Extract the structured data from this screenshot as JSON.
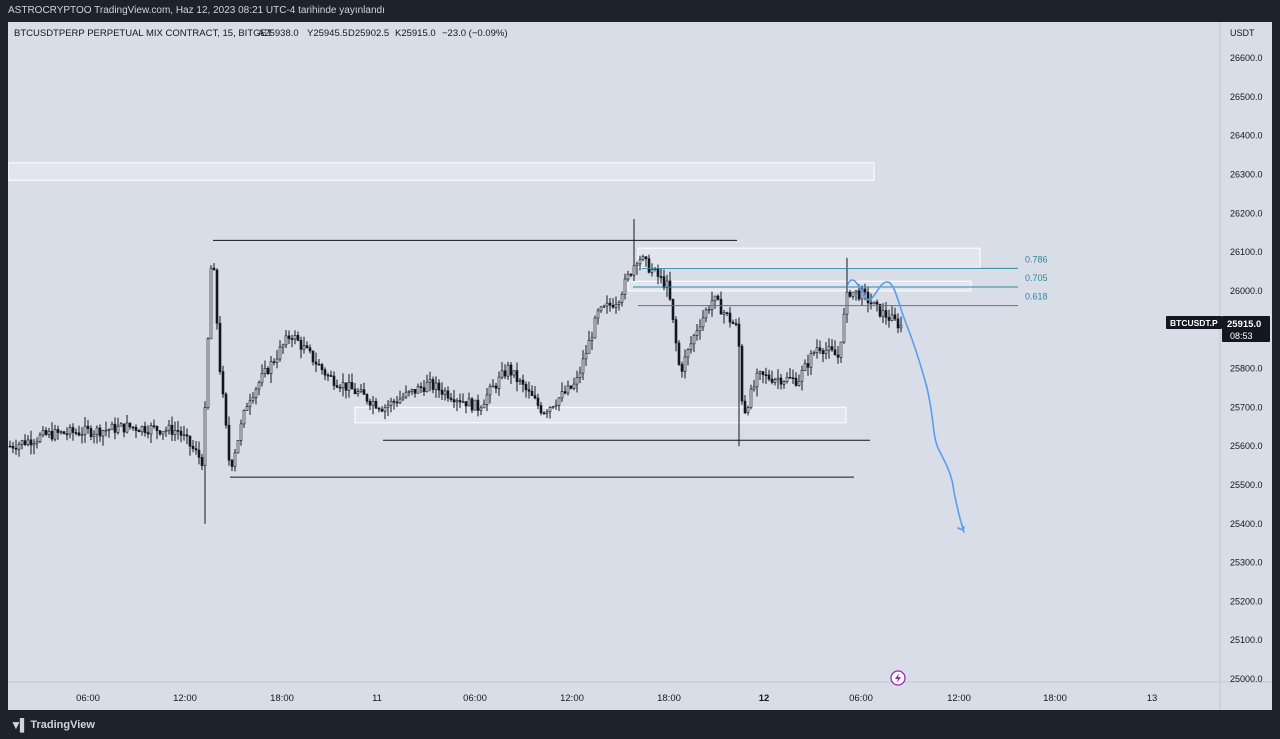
{
  "header": {
    "published": "ASTROCRYPTOO TradingView.com, Haz 12, 2023 08:21 UTC-4 tarihinde yayınlandı"
  },
  "legend": {
    "symbol": "BTCUSDTPERP PERPETUAL MIX CONTRACT, 15, BITGET",
    "open": "A25938.0",
    "high": "Y25945.5",
    "low": "D25902.5",
    "close": "K25915.0",
    "change": "−23.0 (−0.09%)"
  },
  "price_axis": {
    "currency": "USDT",
    "ticks": [
      "26600.0",
      "26500.0",
      "26400.0",
      "26300.0",
      "26200.0",
      "26100.0",
      "26000.0",
      "25900.0",
      "25800.0",
      "25700.0",
      "25600.0",
      "25500.0",
      "25400.0",
      "25300.0",
      "25200.0",
      "25100.0",
      "25000.0"
    ]
  },
  "time_axis": {
    "ticks": [
      {
        "label": "06:00",
        "bold": false
      },
      {
        "label": "12:00",
        "bold": false
      },
      {
        "label": "18:00",
        "bold": false
      },
      {
        "label": "11",
        "bold": false
      },
      {
        "label": "06:00",
        "bold": false
      },
      {
        "label": "12:00",
        "bold": false
      },
      {
        "label": "18:00",
        "bold": false
      },
      {
        "label": "12",
        "bold": true
      },
      {
        "label": "06:00",
        "bold": false
      },
      {
        "label": "12:00",
        "bold": false
      },
      {
        "label": "18:00",
        "bold": false
      },
      {
        "label": "13",
        "bold": false
      }
    ]
  },
  "fib_levels": [
    "0.786",
    "0.705",
    "0.618"
  ],
  "price_tag": {
    "symbol": "BTCUSDT.P",
    "price": "25915.0",
    "countdown": "08:53"
  },
  "footer": {
    "brand": "TradingView"
  },
  "chart_data": {
    "type": "candlestick",
    "y_unit": "USDT",
    "ylim": [
      25000,
      26600
    ],
    "last_price": 25915.0,
    "key_levels": {
      "range_high": 26130,
      "range_low": 25520,
      "intraday_support": 25615,
      "swing_high": 26185,
      "swing_low": 25340
    },
    "zones": [
      {
        "from": 26285,
        "to": 26330
      },
      {
        "from": 26060,
        "to": 26110
      },
      {
        "from": 26000,
        "to": 26025
      },
      {
        "from": 25660,
        "to": 25700
      }
    ],
    "fibonacci": [
      {
        "level": "0.786",
        "price": 26058
      },
      {
        "level": "0.705",
        "price": 26010
      },
      {
        "level": "0.618",
        "price": 25962
      }
    ],
    "projection_target": 25390,
    "colors": {
      "background": "#d9dde8",
      "candle": "#131722",
      "fib": "#2a8a9c",
      "projection": "#5b9cf0",
      "zone": "#ffffff",
      "accent": "#9c27b0"
    }
  }
}
